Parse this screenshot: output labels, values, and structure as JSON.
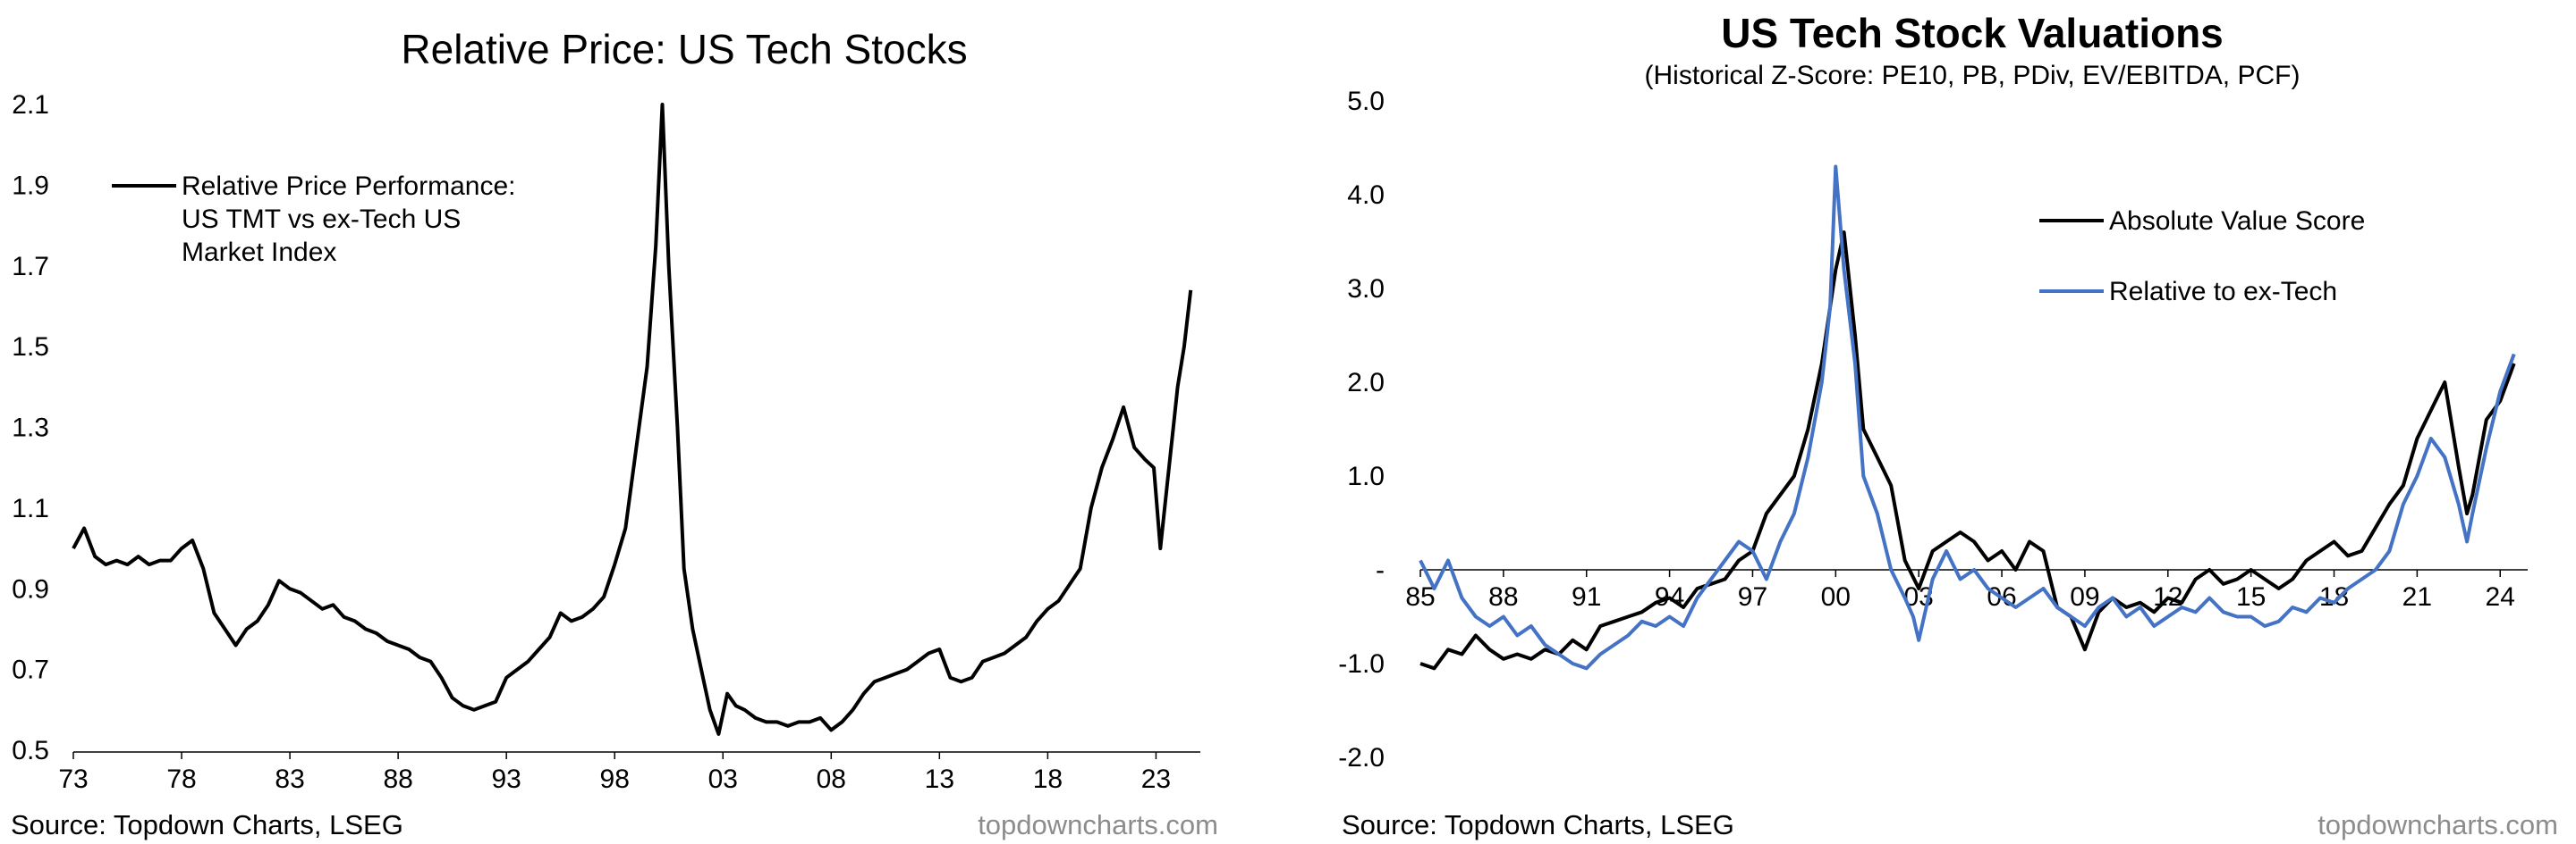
{
  "chart_data": [
    {
      "type": "line",
      "title": "Relative Price: US Tech Stocks",
      "source": "Source: Topdown Charts, LSEG",
      "brand": "topdowncharts.com",
      "ylim": [
        0.5,
        2.1
      ],
      "xlim": [
        1973,
        2024.8
      ],
      "yticks": [
        "0.5",
        "0.7",
        "0.9",
        "1.1",
        "1.3",
        "1.5",
        "1.7",
        "1.9",
        "2.1"
      ],
      "ytick_values": [
        0.5,
        0.7,
        0.9,
        1.1,
        1.3,
        1.5,
        1.7,
        1.9,
        2.1
      ],
      "xticks": [
        "73",
        "78",
        "83",
        "88",
        "93",
        "98",
        "03",
        "08",
        "13",
        "18",
        "23"
      ],
      "xtick_values": [
        1973,
        1978,
        1983,
        1988,
        1993,
        1998,
        2003,
        2008,
        2013,
        2018,
        2023
      ],
      "legend": [
        {
          "lines": [
            "Relative Price Performance:",
            "US TMT vs ex-Tech US",
            "Market Index"
          ],
          "color": "#000000"
        }
      ],
      "series": [
        {
          "color": "#000000",
          "x": [
            1973.0,
            1973.5,
            1974.0,
            1974.5,
            1975.0,
            1975.5,
            1976.0,
            1976.5,
            1977.0,
            1977.5,
            1978.0,
            1978.5,
            1979.0,
            1979.5,
            1980.0,
            1980.5,
            1981.0,
            1981.5,
            1982.0,
            1982.5,
            1983.0,
            1983.5,
            1984.0,
            1984.5,
            1985.0,
            1985.5,
            1986.0,
            1986.5,
            1987.0,
            1987.5,
            1988.0,
            1988.5,
            1989.0,
            1989.5,
            1990.0,
            1990.5,
            1991.0,
            1991.5,
            1992.0,
            1992.5,
            1993.0,
            1993.5,
            1994.0,
            1994.5,
            1995.0,
            1995.5,
            1996.0,
            1996.5,
            1997.0,
            1997.5,
            1998.0,
            1998.5,
            1999.0,
            1999.5,
            1999.9,
            2000.2,
            2000.5,
            2000.9,
            2001.2,
            2001.6,
            2002.0,
            2002.4,
            2002.8,
            2003.2,
            2003.6,
            2004.0,
            2004.5,
            2005.0,
            2005.5,
            2006.0,
            2006.5,
            2007.0,
            2007.5,
            2008.0,
            2008.5,
            2009.0,
            2009.5,
            2010.0,
            2010.5,
            2011.0,
            2011.5,
            2012.0,
            2012.5,
            2013.0,
            2013.5,
            2014.0,
            2014.5,
            2015.0,
            2015.5,
            2016.0,
            2016.5,
            2017.0,
            2017.5,
            2018.0,
            2018.5,
            2019.0,
            2019.5,
            2020.0,
            2020.5,
            2021.0,
            2021.5,
            2022.0,
            2022.5,
            2022.9,
            2023.2,
            2023.5,
            2023.8,
            2024.0,
            2024.3,
            2024.6
          ],
          "y": [
            1.0,
            1.05,
            0.98,
            0.96,
            0.97,
            0.96,
            0.98,
            0.96,
            0.97,
            0.97,
            1.0,
            1.02,
            0.95,
            0.84,
            0.8,
            0.76,
            0.8,
            0.82,
            0.86,
            0.92,
            0.9,
            0.89,
            0.87,
            0.85,
            0.86,
            0.83,
            0.82,
            0.8,
            0.79,
            0.77,
            0.76,
            0.75,
            0.73,
            0.72,
            0.68,
            0.63,
            0.61,
            0.6,
            0.61,
            0.62,
            0.68,
            0.7,
            0.72,
            0.75,
            0.78,
            0.84,
            0.82,
            0.83,
            0.85,
            0.88,
            0.96,
            1.05,
            1.25,
            1.45,
            1.75,
            2.1,
            1.7,
            1.3,
            0.95,
            0.8,
            0.7,
            0.6,
            0.54,
            0.64,
            0.61,
            0.6,
            0.58,
            0.57,
            0.57,
            0.56,
            0.57,
            0.57,
            0.58,
            0.55,
            0.57,
            0.6,
            0.64,
            0.67,
            0.68,
            0.69,
            0.7,
            0.72,
            0.74,
            0.75,
            0.68,
            0.67,
            0.68,
            0.72,
            0.73,
            0.74,
            0.76,
            0.78,
            0.82,
            0.85,
            0.87,
            0.91,
            0.95,
            1.1,
            1.2,
            1.27,
            1.35,
            1.25,
            1.22,
            1.2,
            1.0,
            1.15,
            1.3,
            1.4,
            1.5,
            1.64
          ]
        }
      ]
    },
    {
      "type": "line",
      "title": "US Tech Stock Valuations",
      "subtitle": "(Historical Z-Score: PE10, PB, PDiv, EV/EBITDA, PCF)",
      "source": "Source: Topdown Charts, LSEG",
      "brand": "topdowncharts.com",
      "ylim": [
        -2.0,
        5.0
      ],
      "xlim": [
        1985,
        2024.8
      ],
      "yticks": [
        "-2.0",
        "-1.0",
        "-",
        "1.0",
        "2.0",
        "3.0",
        "4.0",
        "5.0"
      ],
      "ytick_values": [
        -2.0,
        -1.0,
        0.0,
        1.0,
        2.0,
        3.0,
        4.0,
        5.0
      ],
      "xticks": [
        "85",
        "88",
        "91",
        "94",
        "97",
        "00",
        "03",
        "06",
        "09",
        "12",
        "15",
        "18",
        "21",
        "24"
      ],
      "xtick_values": [
        1985,
        1988,
        1991,
        1994,
        1997,
        2000,
        2003,
        2006,
        2009,
        2012,
        2015,
        2018,
        2021,
        2024
      ],
      "legend": [
        {
          "name": "Absolute Value Score",
          "color": "#000000"
        },
        {
          "name": "Relative to ex-Tech",
          "color": "#4472C4"
        }
      ],
      "series": [
        {
          "name": "Absolute Value Score",
          "color": "#000000",
          "x": [
            1985.0,
            1985.5,
            1986.0,
            1986.5,
            1987.0,
            1987.5,
            1988.0,
            1988.5,
            1989.0,
            1989.5,
            1990.0,
            1990.5,
            1991.0,
            1991.5,
            1992.0,
            1992.5,
            1993.0,
            1993.5,
            1994.0,
            1994.5,
            1995.0,
            1995.5,
            1996.0,
            1996.5,
            1997.0,
            1997.5,
            1998.0,
            1998.5,
            1999.0,
            1999.5,
            2000.0,
            2000.3,
            2000.7,
            2001.0,
            2001.5,
            2002.0,
            2002.5,
            2003.0,
            2003.5,
            2004.0,
            2004.5,
            2005.0,
            2005.5,
            2006.0,
            2006.5,
            2007.0,
            2007.5,
            2008.0,
            2008.5,
            2009.0,
            2009.5,
            2010.0,
            2010.5,
            2011.0,
            2011.5,
            2012.0,
            2012.5,
            2013.0,
            2013.5,
            2014.0,
            2014.5,
            2015.0,
            2015.5,
            2016.0,
            2016.5,
            2017.0,
            2017.5,
            2018.0,
            2018.5,
            2019.0,
            2019.5,
            2020.0,
            2020.5,
            2021.0,
            2021.5,
            2022.0,
            2022.5,
            2022.8,
            2023.0,
            2023.5,
            2024.0,
            2024.5
          ],
          "y": [
            -1.0,
            -1.05,
            -0.85,
            -0.9,
            -0.7,
            -0.85,
            -0.95,
            -0.9,
            -0.95,
            -0.85,
            -0.9,
            -0.75,
            -0.85,
            -0.6,
            -0.55,
            -0.5,
            -0.45,
            -0.35,
            -0.3,
            -0.4,
            -0.2,
            -0.15,
            -0.1,
            0.1,
            0.2,
            0.6,
            0.8,
            1.0,
            1.5,
            2.2,
            3.2,
            3.6,
            2.5,
            1.5,
            1.2,
            0.9,
            0.1,
            -0.2,
            0.2,
            0.3,
            0.4,
            0.3,
            0.1,
            0.2,
            0.0,
            0.3,
            0.2,
            -0.4,
            -0.5,
            -0.85,
            -0.45,
            -0.3,
            -0.4,
            -0.35,
            -0.45,
            -0.3,
            -0.35,
            -0.1,
            0.0,
            -0.15,
            -0.1,
            0.0,
            -0.1,
            -0.2,
            -0.1,
            0.1,
            0.2,
            0.3,
            0.15,
            0.2,
            0.45,
            0.7,
            0.9,
            1.4,
            1.7,
            2.0,
            1.1,
            0.6,
            0.8,
            1.6,
            1.8,
            2.2
          ]
        },
        {
          "name": "Relative to ex-Tech",
          "color": "#4472C4",
          "x": [
            1985.0,
            1985.5,
            1986.0,
            1986.5,
            1987.0,
            1987.5,
            1988.0,
            1988.5,
            1989.0,
            1989.5,
            1990.0,
            1990.5,
            1991.0,
            1991.5,
            1992.0,
            1992.5,
            1993.0,
            1993.5,
            1994.0,
            1994.5,
            1995.0,
            1995.5,
            1996.0,
            1996.5,
            1997.0,
            1997.5,
            1998.0,
            1998.5,
            1999.0,
            1999.5,
            1999.8,
            2000.0,
            2000.3,
            2000.7,
            2001.0,
            2001.5,
            2002.0,
            2002.5,
            2002.8,
            2003.0,
            2003.5,
            2004.0,
            2004.5,
            2005.0,
            2005.5,
            2006.0,
            2006.5,
            2007.0,
            2007.5,
            2008.0,
            2008.5,
            2009.0,
            2009.5,
            2010.0,
            2010.5,
            2011.0,
            2011.5,
            2012.0,
            2012.5,
            2013.0,
            2013.5,
            2014.0,
            2014.5,
            2015.0,
            2015.5,
            2016.0,
            2016.5,
            2017.0,
            2017.5,
            2018.0,
            2018.5,
            2019.0,
            2019.5,
            2020.0,
            2020.5,
            2021.0,
            2021.5,
            2022.0,
            2022.5,
            2022.8,
            2023.0,
            2023.5,
            2024.0,
            2024.5
          ],
          "y": [
            0.1,
            -0.2,
            0.1,
            -0.3,
            -0.5,
            -0.6,
            -0.5,
            -0.7,
            -0.6,
            -0.8,
            -0.9,
            -1.0,
            -1.05,
            -0.9,
            -0.8,
            -0.7,
            -0.55,
            -0.6,
            -0.5,
            -0.6,
            -0.3,
            -0.1,
            0.1,
            0.3,
            0.2,
            -0.1,
            0.3,
            0.6,
            1.2,
            2.0,
            2.8,
            4.3,
            3.2,
            2.2,
            1.0,
            0.6,
            0.0,
            -0.3,
            -0.5,
            -0.75,
            -0.1,
            0.2,
            -0.1,
            0.0,
            -0.2,
            -0.3,
            -0.4,
            -0.3,
            -0.2,
            -0.4,
            -0.5,
            -0.6,
            -0.4,
            -0.3,
            -0.5,
            -0.4,
            -0.6,
            -0.5,
            -0.4,
            -0.45,
            -0.3,
            -0.45,
            -0.5,
            -0.5,
            -0.6,
            -0.55,
            -0.4,
            -0.45,
            -0.3,
            -0.35,
            -0.2,
            -0.1,
            0.0,
            0.2,
            0.7,
            1.0,
            1.4,
            1.2,
            0.7,
            0.3,
            0.6,
            1.3,
            1.9,
            2.3
          ]
        }
      ]
    }
  ]
}
